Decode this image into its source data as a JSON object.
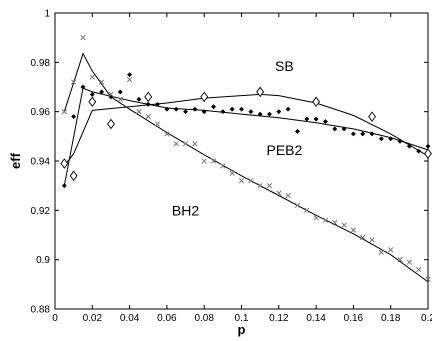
{
  "chart_data": {
    "type": "scatter",
    "title": "",
    "xlabel": "p",
    "ylabel": "eff",
    "xlim": [
      0,
      0.2
    ],
    "ylim": [
      0.88,
      1.0
    ],
    "xticks": [
      0,
      0.02,
      0.04,
      0.06,
      0.08,
      0.1,
      0.12,
      0.14,
      0.16,
      0.18,
      0.2
    ],
    "xtick_labels": [
      "0",
      "0.02",
      "0.04",
      "0.06",
      "0.08",
      "0.1",
      "0.12",
      "0.14",
      "0.16",
      "0.18",
      "0.2"
    ],
    "yticks": [
      0.88,
      0.9,
      0.92,
      0.94,
      0.96,
      0.98,
      1.0
    ],
    "ytick_labels": [
      "0.88",
      "0.9",
      "0.92",
      "0.94",
      "0.96",
      "0.98",
      "1"
    ],
    "grid": false,
    "legend": false,
    "annotations": [
      {
        "text": "SB",
        "x": 0.123,
        "y": 0.9765
      },
      {
        "text": "PEB2",
        "x": 0.123,
        "y": 0.9425
      },
      {
        "text": "BH2",
        "x": 0.07,
        "y": 0.918
      }
    ],
    "series": [
      {
        "marker": "diamond",
        "points": [
          [
            0.005,
            0.939
          ],
          [
            0.01,
            0.934
          ],
          [
            0.02,
            0.964
          ],
          [
            0.03,
            0.955
          ],
          [
            0.05,
            0.966
          ],
          [
            0.08,
            0.966
          ],
          [
            0.11,
            0.968
          ],
          [
            0.14,
            0.964
          ],
          [
            0.17,
            0.958
          ],
          [
            0.2,
            0.943
          ]
        ],
        "fit": [
          [
            0.005,
            0.938
          ],
          [
            0.01,
            0.943
          ],
          [
            0.02,
            0.9605
          ],
          [
            0.04,
            0.962
          ],
          [
            0.06,
            0.9635
          ],
          [
            0.08,
            0.9655
          ],
          [
            0.1,
            0.9665
          ],
          [
            0.11,
            0.967
          ],
          [
            0.12,
            0.9665
          ],
          [
            0.14,
            0.9635
          ],
          [
            0.16,
            0.9585
          ],
          [
            0.18,
            0.951
          ],
          [
            0.2,
            0.942
          ]
        ]
      },
      {
        "marker": "dot",
        "points": [
          [
            0.005,
            0.93
          ],
          [
            0.01,
            0.958
          ],
          [
            0.015,
            0.97
          ],
          [
            0.02,
            0.967
          ],
          [
            0.025,
            0.968
          ],
          [
            0.03,
            0.966
          ],
          [
            0.035,
            0.968
          ],
          [
            0.04,
            0.975
          ],
          [
            0.045,
            0.965
          ],
          [
            0.05,
            0.963
          ],
          [
            0.055,
            0.963
          ],
          [
            0.06,
            0.961
          ],
          [
            0.065,
            0.961
          ],
          [
            0.07,
            0.96
          ],
          [
            0.075,
            0.961
          ],
          [
            0.08,
            0.96
          ],
          [
            0.085,
            0.962
          ],
          [
            0.09,
            0.96
          ],
          [
            0.095,
            0.961
          ],
          [
            0.1,
            0.961
          ],
          [
            0.105,
            0.96
          ],
          [
            0.11,
            0.959
          ],
          [
            0.115,
            0.959
          ],
          [
            0.12,
            0.96
          ],
          [
            0.125,
            0.961
          ],
          [
            0.13,
            0.952
          ],
          [
            0.135,
            0.957
          ],
          [
            0.14,
            0.957
          ],
          [
            0.145,
            0.956
          ],
          [
            0.15,
            0.953
          ],
          [
            0.155,
            0.953
          ],
          [
            0.16,
            0.951
          ],
          [
            0.165,
            0.951
          ],
          [
            0.17,
            0.951
          ],
          [
            0.175,
            0.949
          ],
          [
            0.18,
            0.949
          ],
          [
            0.185,
            0.948
          ],
          [
            0.19,
            0.946
          ],
          [
            0.195,
            0.944
          ],
          [
            0.2,
            0.946
          ]
        ],
        "fit": [
          [
            0.005,
            0.93
          ],
          [
            0.015,
            0.9695
          ],
          [
            0.02,
            0.968
          ],
          [
            0.04,
            0.9645
          ],
          [
            0.06,
            0.9615
          ],
          [
            0.08,
            0.9605
          ],
          [
            0.1,
            0.959
          ],
          [
            0.12,
            0.9575
          ],
          [
            0.14,
            0.9555
          ],
          [
            0.16,
            0.953
          ],
          [
            0.18,
            0.9495
          ],
          [
            0.2,
            0.9445
          ]
        ]
      },
      {
        "marker": "cross",
        "points": [
          [
            0.005,
            0.96
          ],
          [
            0.01,
            0.972
          ],
          [
            0.015,
            0.99
          ],
          [
            0.02,
            0.974
          ],
          [
            0.025,
            0.972
          ],
          [
            0.03,
            0.967
          ],
          [
            0.035,
            0.965
          ],
          [
            0.04,
            0.973
          ],
          [
            0.045,
            0.96
          ],
          [
            0.05,
            0.958
          ],
          [
            0.055,
            0.955
          ],
          [
            0.06,
            0.951
          ],
          [
            0.065,
            0.947
          ],
          [
            0.07,
            0.947
          ],
          [
            0.075,
            0.947
          ],
          [
            0.08,
            0.94
          ],
          [
            0.085,
            0.94
          ],
          [
            0.09,
            0.938
          ],
          [
            0.095,
            0.935
          ],
          [
            0.1,
            0.932
          ],
          [
            0.105,
            0.932
          ],
          [
            0.11,
            0.93
          ],
          [
            0.115,
            0.93
          ],
          [
            0.12,
            0.927
          ],
          [
            0.125,
            0.926
          ],
          [
            0.13,
            0.922
          ],
          [
            0.135,
            0.92
          ],
          [
            0.14,
            0.917
          ],
          [
            0.145,
            0.916
          ],
          [
            0.15,
            0.915
          ],
          [
            0.155,
            0.914
          ],
          [
            0.16,
            0.912
          ],
          [
            0.165,
            0.909
          ],
          [
            0.17,
            0.908
          ],
          [
            0.175,
            0.903
          ],
          [
            0.18,
            0.904
          ],
          [
            0.185,
            0.9
          ],
          [
            0.19,
            0.899
          ],
          [
            0.195,
            0.896
          ],
          [
            0.2,
            0.892
          ]
        ],
        "fit": [
          [
            0.005,
            0.96
          ],
          [
            0.015,
            0.9835
          ],
          [
            0.02,
            0.9765
          ],
          [
            0.03,
            0.966
          ],
          [
            0.04,
            0.961
          ],
          [
            0.06,
            0.9515
          ],
          [
            0.08,
            0.9425
          ],
          [
            0.1,
            0.934
          ],
          [
            0.12,
            0.926
          ],
          [
            0.14,
            0.918
          ],
          [
            0.16,
            0.9105
          ],
          [
            0.18,
            0.902
          ],
          [
            0.2,
            0.891
          ]
        ]
      }
    ]
  }
}
